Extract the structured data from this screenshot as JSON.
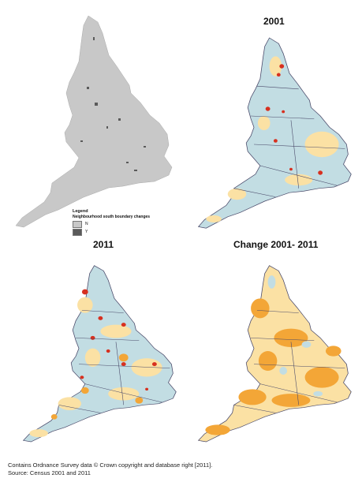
{
  "maps": {
    "boundary": {
      "legend": {
        "title": "Legend",
        "subtitle": "Neighbourhood south boundary changes",
        "items": [
          {
            "label": "N",
            "color": "#c8c8c8"
          },
          {
            "label": "Y",
            "color": "#5a5a5a"
          }
        ]
      }
    },
    "y2001": {
      "title": "2001"
    },
    "y2011": {
      "title": "2011"
    },
    "change": {
      "title": "Change 2001- 2011"
    }
  },
  "colors": {
    "grey": "#c8c8c8",
    "dark_grey": "#5a5a5a",
    "blue": "#c2dde3",
    "cream": "#fbe1a4",
    "orange": "#f3a637",
    "red": "#d7301f",
    "border": "#4a4a6a"
  },
  "footer": {
    "line1": "Contains Ordnance Survey data © Crown copyright and database right [2011].",
    "line2": "Source: Census 2001 and 2011"
  }
}
